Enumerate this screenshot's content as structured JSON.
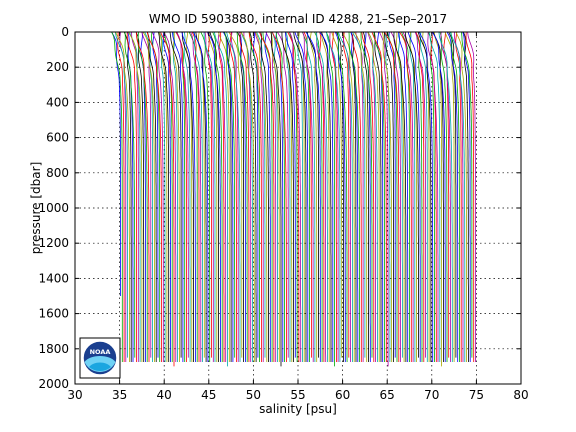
{
  "chart_data": {
    "type": "line",
    "title": "WMO ID 5903880, internal ID 4288, 21–Sep–2017",
    "xlabel": "salinity [psu]",
    "ylabel": "pressure [dbar]",
    "xlim": [
      30,
      80
    ],
    "ylim": [
      2000,
      0
    ],
    "y_reversed": true,
    "xticks": [
      "30",
      "35",
      "40",
      "45",
      "50",
      "55",
      "60",
      "65",
      "70",
      "75",
      "80"
    ],
    "yticks": [
      "0",
      "200",
      "400",
      "600",
      "800",
      "1000",
      "1200",
      "1400",
      "1600",
      "1800",
      "2000"
    ],
    "grid": "dotted",
    "layout": "waterfall",
    "profile_count": 200,
    "first_profile_deep_salinity": 35.1,
    "last_profile_deep_salinity": 75.5,
    "offset_per_profile_psu": 0.2,
    "surface_salinity_anomaly": -1.0,
    "max_pressure_dbar": [
      1900,
      1510
    ],
    "series_colors": [
      "#0000ff",
      "#00aa00",
      "#ff0000",
      "#aa00aa",
      "#00aaaa",
      "#aaaa00",
      "#000000"
    ],
    "logo": {
      "text": "NOAA",
      "icon": "noaa-logo-icon"
    }
  }
}
